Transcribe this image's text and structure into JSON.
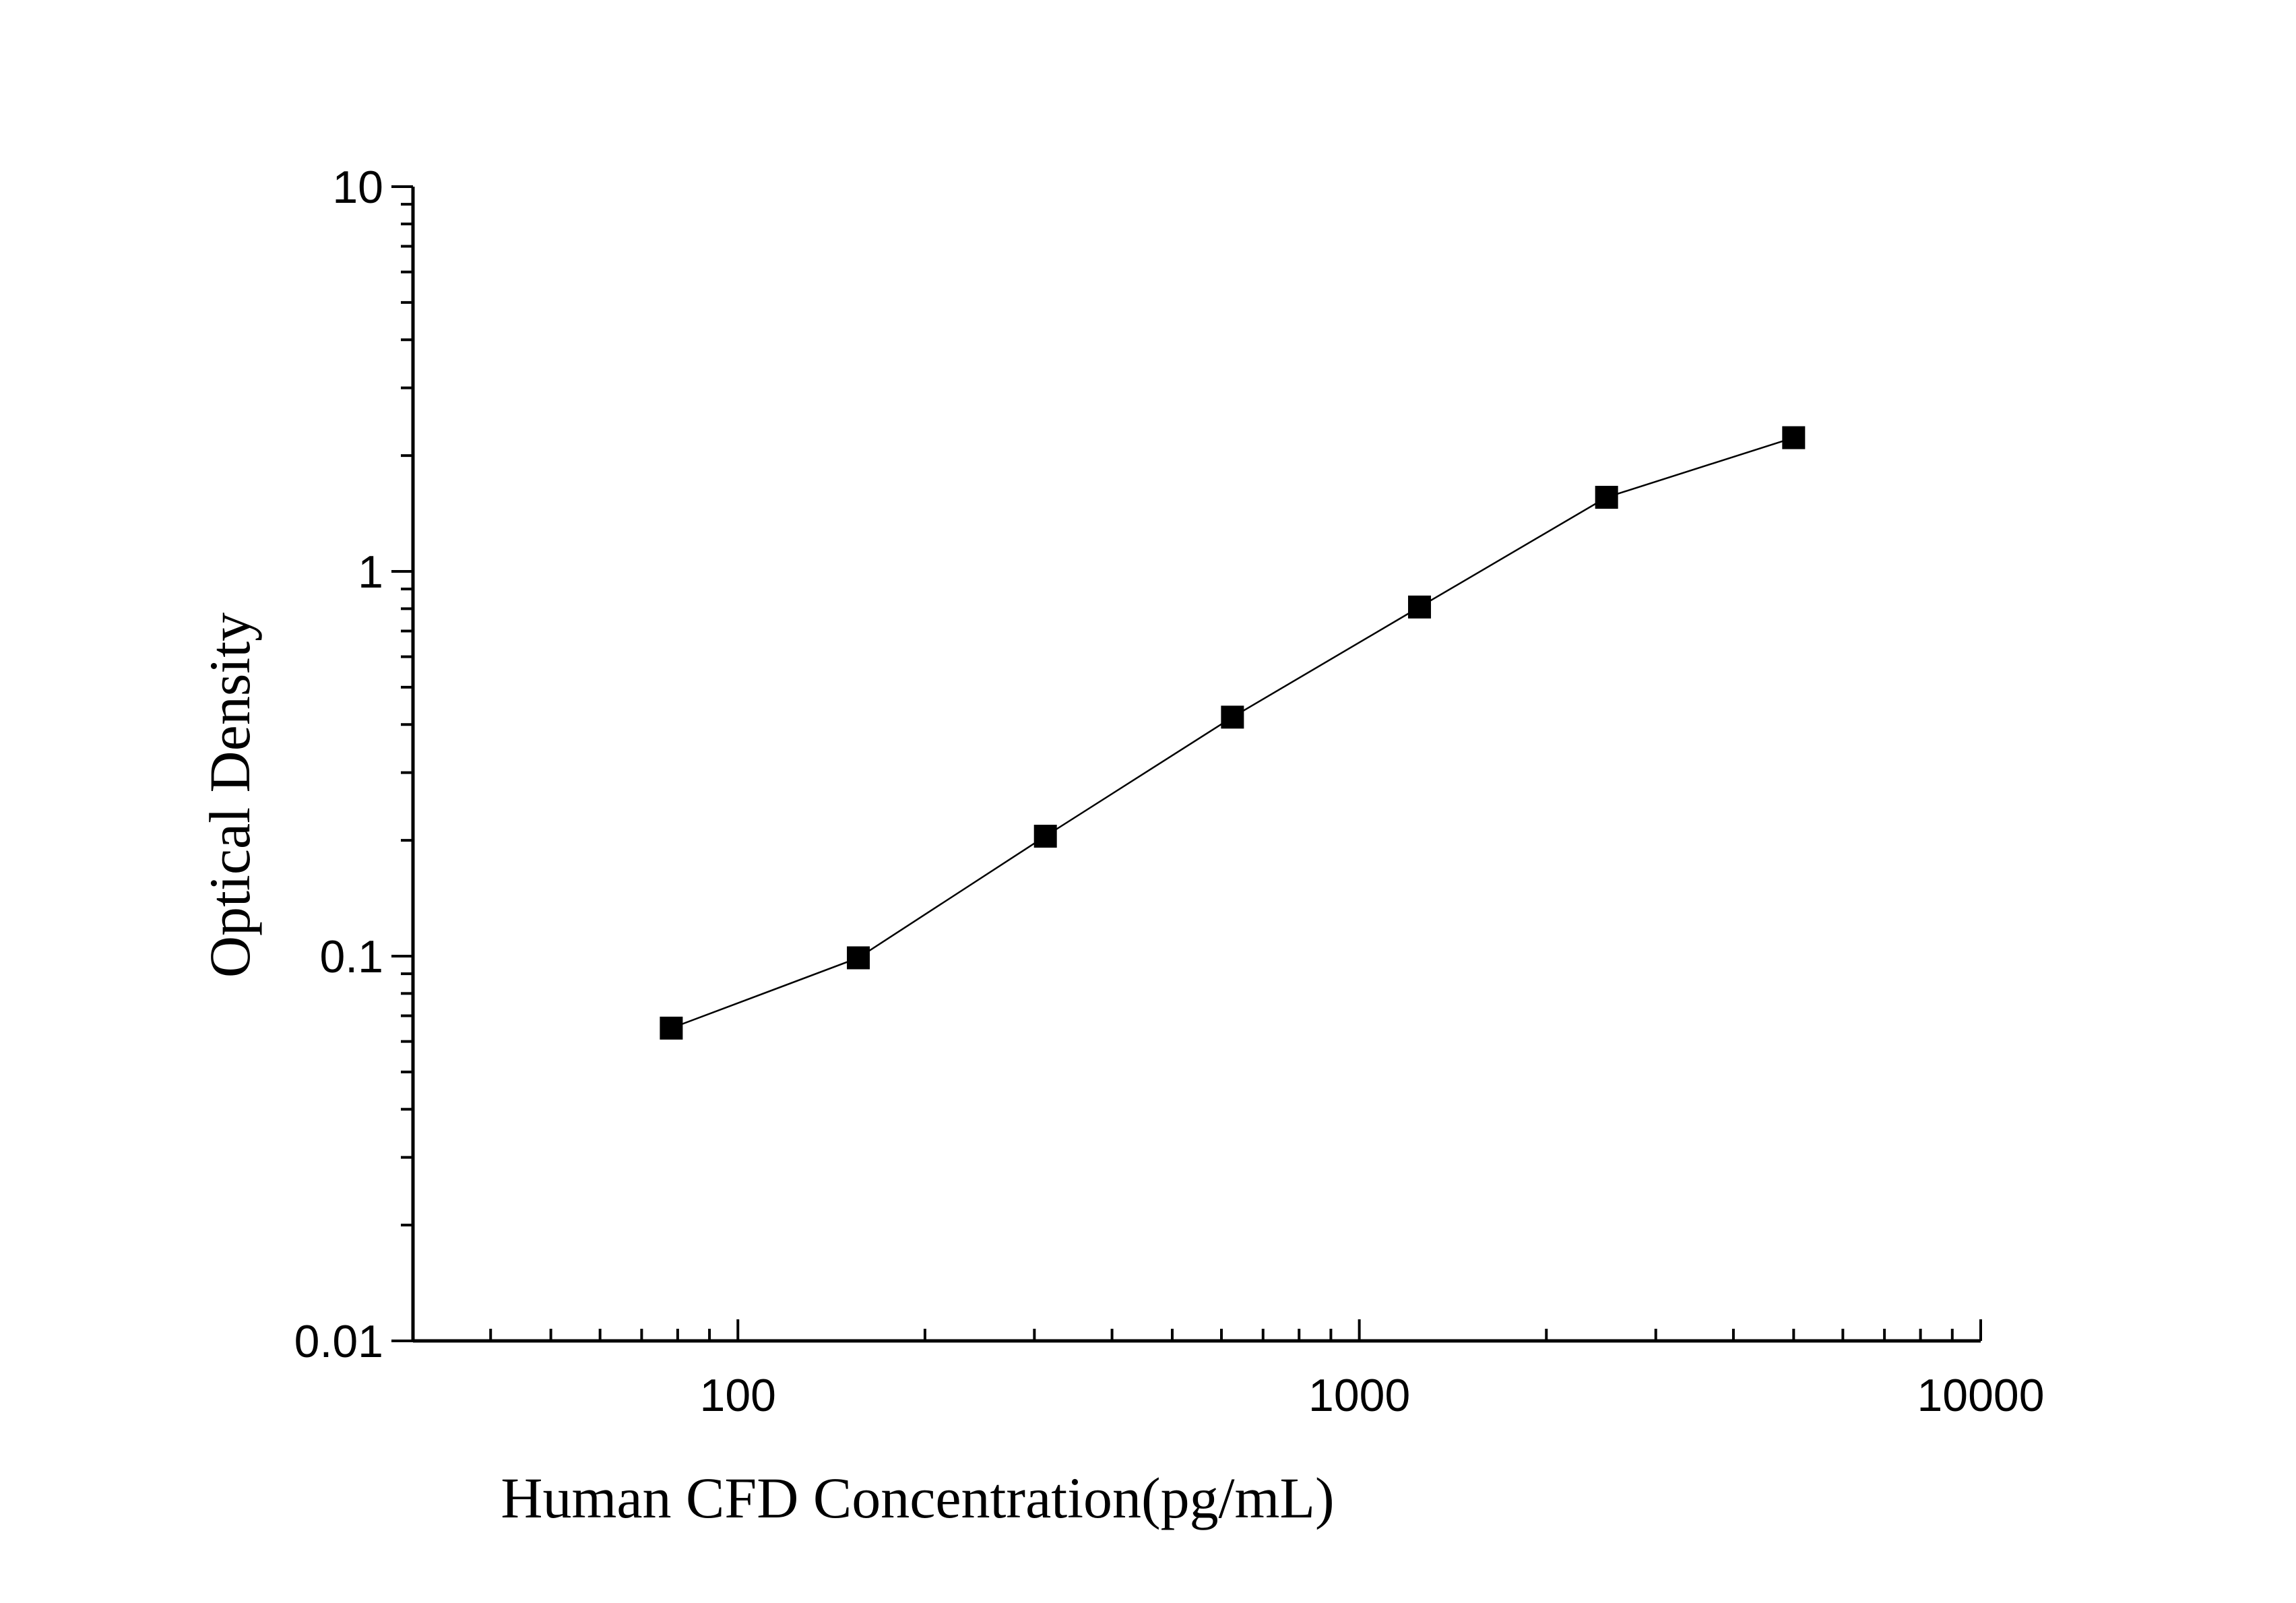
{
  "chart_data": {
    "type": "scatter",
    "title": "",
    "xlabel": "Human CFD Concentration(pg/mL)",
    "ylabel": "Optical Density",
    "x_scale": "log",
    "y_scale": "log",
    "xlim": [
      30,
      10000
    ],
    "ylim": [
      0.01,
      10
    ],
    "x_tick_labels": [
      "100",
      "1000",
      "10000"
    ],
    "y_tick_labels": [
      "10",
      "1",
      "0.1",
      "0.01"
    ],
    "grid": false,
    "legend": "none",
    "colors": {
      "marker": "#000000",
      "line": "#000000",
      "axis": "#000000"
    },
    "series": [
      {
        "marker": "square",
        "connected": true,
        "x": [
          78.125,
          156.25,
          312.5,
          625,
          1250,
          2500,
          5000
        ],
        "y": [
          0.065,
          0.099,
          0.205,
          0.418,
          0.808,
          1.558,
          2.226
        ]
      }
    ]
  }
}
